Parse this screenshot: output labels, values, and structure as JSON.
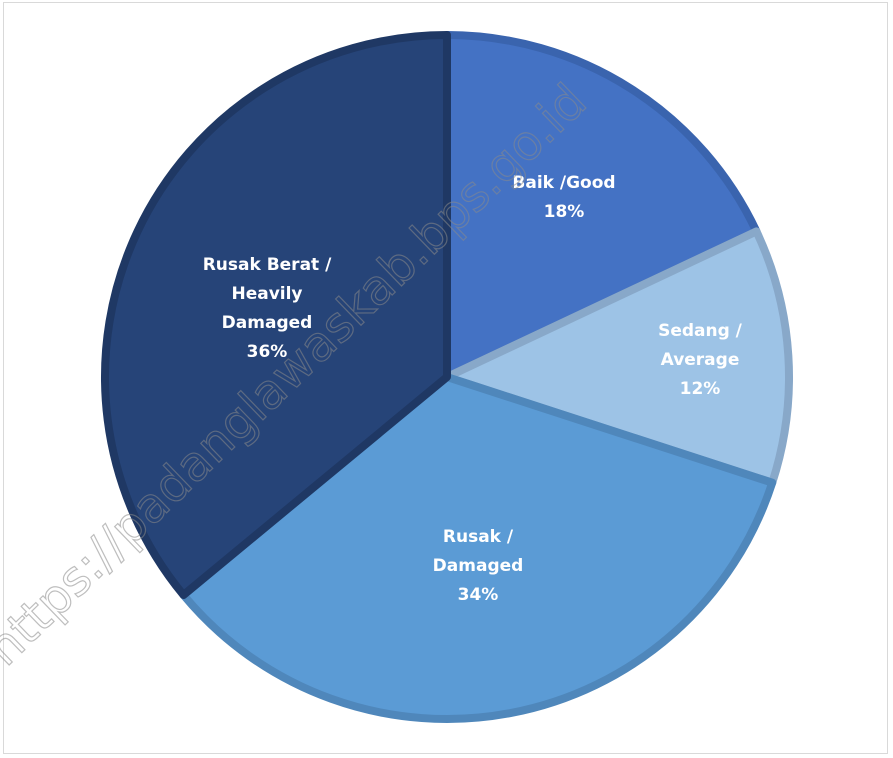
{
  "chart_data": {
    "type": "pie",
    "slices": [
      {
        "label_lines": [
          "Baik /Good"
        ],
        "percent_label": "18%",
        "value": 18,
        "color": "#4472C4",
        "edge": "#3A64AE"
      },
      {
        "label_lines": [
          "Sedang /",
          "Average"
        ],
        "percent_label": "12%",
        "value": 12,
        "color": "#9DC3E6",
        "edge": "#88A8C9"
      },
      {
        "label_lines": [
          "Rusak /",
          "Damaged"
        ],
        "percent_label": "34%",
        "value": 34,
        "color": "#5B9BD5",
        "edge": "#4F87BB"
      },
      {
        "label_lines": [
          "Rusak Berat /",
          "Heavily",
          "Damaged"
        ],
        "percent_label": "36%",
        "value": 36,
        "color": "#264478",
        "edge": "#1F3864"
      }
    ],
    "legend": "none",
    "data_labels": "inside"
  },
  "watermark": {
    "text": "https://padanglawaskab.bps.go.id"
  }
}
